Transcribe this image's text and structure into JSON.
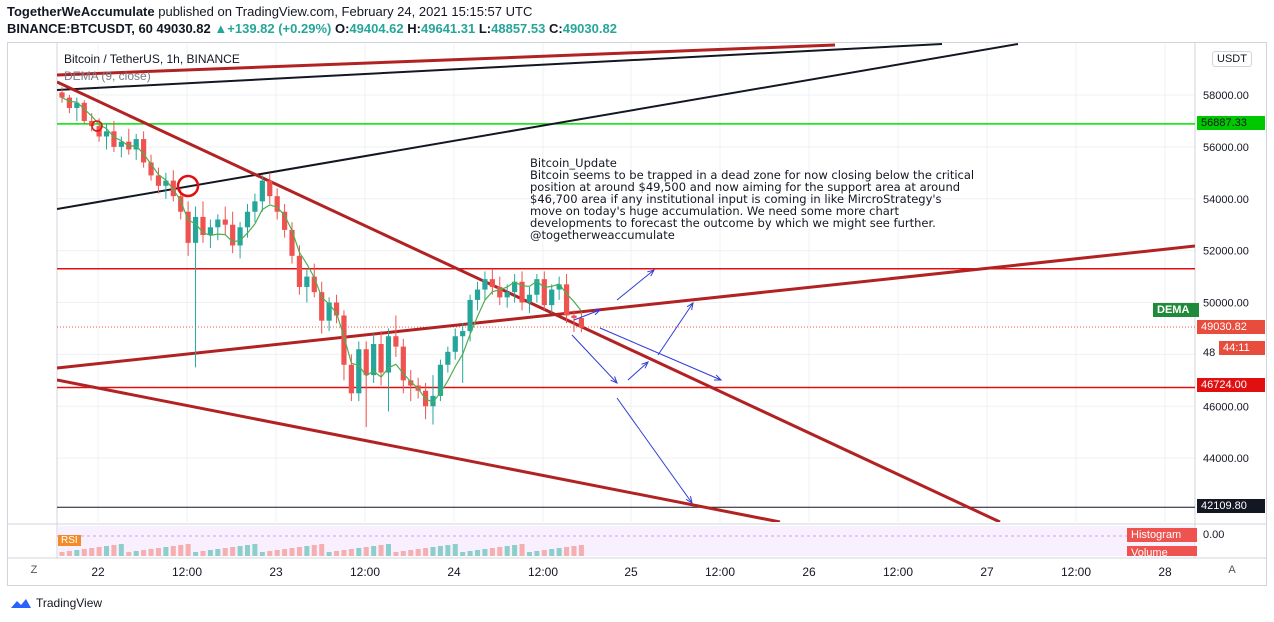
{
  "header": {
    "author": "TogetherWeAccumulate",
    "published": "published on TradingView.com, February 24, 2021 15:15:57 UTC",
    "symbol_line": "BINANCE:BTCUSDT, 60",
    "last": "49030.82",
    "change": "+139.82 (+0.29%)",
    "open_label": "O:",
    "open": "49404.62",
    "high_label": "H:",
    "high": "49641.31",
    "low_label": "L:",
    "low": "48857.53",
    "close_label": "C:",
    "close": "49030.82"
  },
  "legend": {
    "symbol_desc": "Bitcoin / TetherUS, 1h, BINANCE",
    "indicator": "DEMA (9, close)"
  },
  "note": "Bitcoin_Update\nBitcoin seems to be trapped in a dead zone for now closing below the critical\nposition at around $49,500 and now aiming for the support area at around\n$46,700 area if any institutional input is coming in like MircroStrategy's\nmove on today's huge accumulation. We need some more chart\ndevelopments to forecast the outcome by which we might see further.\n@togetherweaccumulate",
  "price_scale": {
    "currency": "USDT",
    "badge_green": "56887.33",
    "badge_dema": "DEMA",
    "badge_price": "49030.82",
    "badge_time": "44:11",
    "badge_red": "46724.00",
    "badge_black": "42109.80",
    "partial_tick": "48"
  },
  "sub_pane": {
    "badge": "RSI",
    "histogram": "Histogram",
    "volume": "Volume",
    "zero": "0.00"
  },
  "buttons": {
    "zoom_left": "Z",
    "zoom_right": "A"
  },
  "footer": {
    "brand": "TradingView"
  },
  "colors": {
    "up": "#26a69a",
    "down": "#ef5350",
    "dema": "#4caf50",
    "trend_dark_red": "#b22222",
    "trend_black": "#131722",
    "level_green": "#00e000",
    "level_red": "#e01010"
  },
  "chart_data": {
    "type": "candlestick",
    "y_axis": {
      "ticks": [
        44000,
        46000,
        48000,
        50000,
        52000,
        54000,
        56000,
        58000
      ],
      "ylim": [
        42000,
        58600
      ]
    },
    "x_axis": {
      "ticks": [
        "22",
        "12:00",
        "23",
        "12:00",
        "24",
        "12:00",
        "25",
        "12:00",
        "26",
        "12:00",
        "27",
        "12:00",
        "28"
      ]
    },
    "series": [
      {
        "name": "BTCUSDT",
        "ohlc": [
          [
            58100,
            58300,
            57700,
            57900
          ],
          [
            57900,
            58000,
            57300,
            57500
          ],
          [
            57500,
            57900,
            57000,
            57700
          ],
          [
            57700,
            57800,
            56900,
            57000
          ],
          [
            57000,
            57300,
            56600,
            56800
          ],
          [
            56800,
            57100,
            56200,
            56400
          ],
          [
            56400,
            56900,
            55900,
            56600
          ],
          [
            56600,
            57000,
            55800,
            56000
          ],
          [
            56000,
            56400,
            55600,
            56200
          ],
          [
            56200,
            56700,
            55700,
            55900
          ],
          [
            55900,
            56500,
            55500,
            56300
          ],
          [
            56300,
            56600,
            55200,
            55400
          ],
          [
            55400,
            55700,
            54700,
            54900
          ],
          [
            54900,
            55200,
            54200,
            54500
          ],
          [
            54500,
            55000,
            54000,
            54700
          ],
          [
            54700,
            55100,
            53900,
            54100
          ],
          [
            54100,
            54400,
            53200,
            53500
          ],
          [
            53500,
            53900,
            51800,
            52300
          ],
          [
            52300,
            53700,
            47500,
            53300
          ],
          [
            53300,
            53900,
            52300,
            52600
          ],
          [
            52600,
            53200,
            52100,
            52900
          ],
          [
            52900,
            53400,
            52400,
            53200
          ],
          [
            53200,
            53700,
            52600,
            53000
          ],
          [
            53000,
            53500,
            51900,
            52200
          ],
          [
            52200,
            53100,
            51700,
            52900
          ],
          [
            52900,
            53800,
            52500,
            53500
          ],
          [
            53500,
            54200,
            53100,
            53900
          ],
          [
            53900,
            54900,
            53500,
            54700
          ],
          [
            54700,
            55000,
            53800,
            54100
          ],
          [
            54100,
            54400,
            53200,
            53500
          ],
          [
            53500,
            53800,
            52500,
            52800
          ],
          [
            52800,
            53100,
            51500,
            51800
          ],
          [
            51800,
            52200,
            50300,
            50600
          ],
          [
            50600,
            51300,
            50000,
            51000
          ],
          [
            51000,
            51500,
            50200,
            50400
          ],
          [
            50400,
            50800,
            48800,
            49300
          ],
          [
            49300,
            50200,
            48900,
            50000
          ],
          [
            50000,
            50300,
            49200,
            49500
          ],
          [
            49500,
            49700,
            47000,
            47600
          ],
          [
            47600,
            48000,
            46200,
            46500
          ],
          [
            46500,
            48500,
            46200,
            48200
          ],
          [
            48200,
            48500,
            45200,
            47200
          ],
          [
            47200,
            48800,
            46900,
            48400
          ],
          [
            48400,
            48900,
            46800,
            47300
          ],
          [
            47300,
            49000,
            45800,
            48700
          ],
          [
            48700,
            49500,
            47900,
            48300
          ],
          [
            48300,
            48600,
            46500,
            47000
          ],
          [
            47000,
            47400,
            46200,
            46800
          ],
          [
            46800,
            47100,
            46300,
            46600
          ],
          [
            46600,
            46900,
            45500,
            46000
          ],
          [
            46000,
            47200,
            45300,
            46400
          ],
          [
            46400,
            47800,
            46200,
            47600
          ],
          [
            47600,
            48300,
            47300,
            48100
          ],
          [
            48100,
            49000,
            47800,
            48700
          ],
          [
            48700,
            49200,
            46900,
            48900
          ],
          [
            48900,
            50300,
            48500,
            50100
          ],
          [
            50100,
            50800,
            49700,
            50500
          ],
          [
            50500,
            51200,
            50100,
            50900
          ],
          [
            50900,
            51300,
            50300,
            50600
          ],
          [
            50600,
            51000,
            49900,
            50200
          ],
          [
            50200,
            50700,
            49800,
            50400
          ],
          [
            50400,
            51100,
            50000,
            50800
          ],
          [
            50800,
            51200,
            49700,
            50000
          ],
          [
            50000,
            50600,
            49600,
            50300
          ],
          [
            50300,
            51100,
            50000,
            50900
          ],
          [
            50900,
            51200,
            49700,
            49900
          ],
          [
            49900,
            50700,
            49600,
            50500
          ],
          [
            50500,
            51000,
            50100,
            50700
          ],
          [
            50700,
            51100,
            49200,
            49500
          ],
          [
            49500,
            49700,
            48860,
            49400
          ],
          [
            49400,
            49641,
            48857,
            49031
          ]
        ]
      },
      {
        "name": "DEMA (9, close)"
      }
    ],
    "horizontal_levels": [
      56887.33,
      51300,
      46724.0,
      42109.8
    ]
  }
}
